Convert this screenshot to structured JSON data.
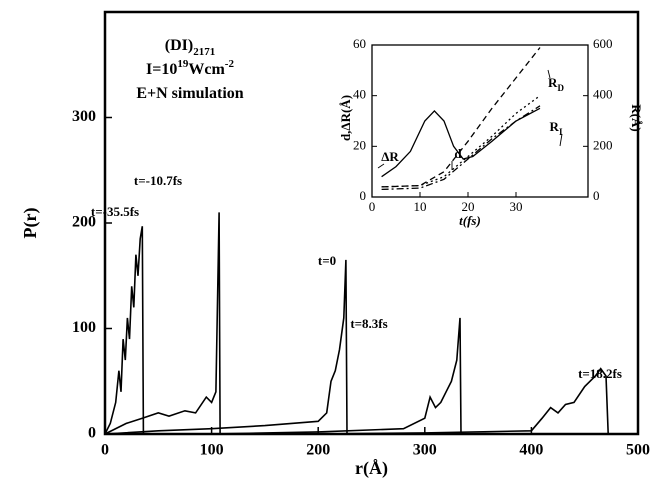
{
  "chart_data": [
    {
      "type": "line",
      "text_lines": [
        [
          {
            "text": "(DI)"
          },
          {
            "text": "2171",
            "shift": "sub"
          }
        ],
        [
          {
            "text": "I=10"
          },
          {
            "text": "19",
            "shift": "super"
          },
          {
            "text": "Wcm"
          },
          {
            "text": "-2",
            "shift": "super"
          }
        ],
        [
          {
            "text": "E+N simulation"
          }
        ]
      ],
      "x_label": "r(Å)",
      "y_label": "P(r)",
      "xlim": [
        0,
        500
      ],
      "xticks": [
        0,
        100,
        200,
        300,
        400,
        500
      ],
      "ylim": [
        0,
        400
      ],
      "yticks": [
        0,
        100,
        200,
        300
      ],
      "series": [
        {
          "name": "t=-35.5fs",
          "color": "#000000",
          "x": [
            0,
            5,
            10,
            13,
            15,
            17,
            19,
            21,
            23,
            25,
            27,
            29,
            31,
            33,
            35,
            36
          ],
          "values": [
            0,
            10,
            30,
            60,
            40,
            90,
            70,
            110,
            90,
            140,
            120,
            170,
            150,
            185,
            197,
            0
          ]
        },
        {
          "name": "t=-10.7fs",
          "color": "#000000",
          "x": [
            0,
            20,
            35,
            50,
            60,
            75,
            85,
            95,
            100,
            104,
            107,
            108
          ],
          "values": [
            0,
            10,
            15,
            20,
            17,
            22,
            20,
            35,
            30,
            40,
            210,
            0
          ]
        },
        {
          "name": "t=0",
          "color": "#000000",
          "x": [
            0,
            50,
            100,
            150,
            200,
            208,
            212,
            216,
            220,
            224,
            226,
            227
          ],
          "values": [
            0,
            3,
            5,
            8,
            12,
            20,
            50,
            60,
            80,
            110,
            165,
            0
          ]
        },
        {
          "name": "t=8.3fs",
          "color": "#000000",
          "x": [
            100,
            200,
            280,
            300,
            305,
            310,
            315,
            320,
            325,
            330,
            333,
            334
          ],
          "values": [
            0,
            2,
            5,
            15,
            35,
            25,
            30,
            40,
            50,
            70,
            110,
            0
          ]
        },
        {
          "name": "t=18.2fs",
          "color": "#000000",
          "x": [
            200,
            300,
            400,
            410,
            418,
            425,
            432,
            440,
            450,
            460,
            465,
            470,
            472
          ],
          "values": [
            0,
            1,
            3,
            15,
            25,
            20,
            28,
            30,
            45,
            55,
            62,
            55,
            0
          ]
        }
      ]
    },
    {
      "type": "line",
      "x_label": "t(fs)",
      "y_label": "d,ΔR(Å)",
      "y2_label": "R(Å)",
      "xlim": [
        0,
        45
      ],
      "xticks": [
        0,
        10,
        20,
        30
      ],
      "ylim": [
        0,
        60
      ],
      "yticks": [
        0,
        20,
        40,
        60
      ],
      "y2lim": [
        0,
        600
      ],
      "y2ticks": [
        0,
        200,
        400,
        600
      ],
      "series": [
        {
          "name": "ΔR",
          "color": "#000000",
          "style": "solid",
          "x": [
            2,
            5,
            8,
            11,
            13,
            15,
            17,
            19,
            21,
            25,
            30,
            35
          ],
          "values": [
            8,
            12,
            18,
            30,
            34,
            30,
            20,
            15,
            16,
            22,
            30,
            35
          ]
        },
        {
          "name": "d",
          "color": "#000000",
          "style": "dotted",
          "x": [
            2,
            10,
            15,
            20,
            25,
            30,
            35
          ],
          "values": [
            4,
            4.5,
            8,
            16,
            24,
            33,
            40
          ]
        },
        {
          "name": "R",
          "subscript": "D",
          "color": "#000000",
          "style": "dashed",
          "axis": "y2",
          "x": [
            2,
            10,
            15,
            20,
            25,
            30,
            35
          ],
          "values": [
            40,
            45,
            100,
            220,
            350,
            470,
            590
          ]
        },
        {
          "name": "R",
          "subscript": "I",
          "color": "#000000",
          "style": "dashdot",
          "axis": "y2",
          "x": [
            2,
            10,
            15,
            20,
            25,
            30,
            35
          ],
          "values": [
            30,
            35,
            70,
            150,
            230,
            300,
            360
          ]
        }
      ]
    }
  ]
}
